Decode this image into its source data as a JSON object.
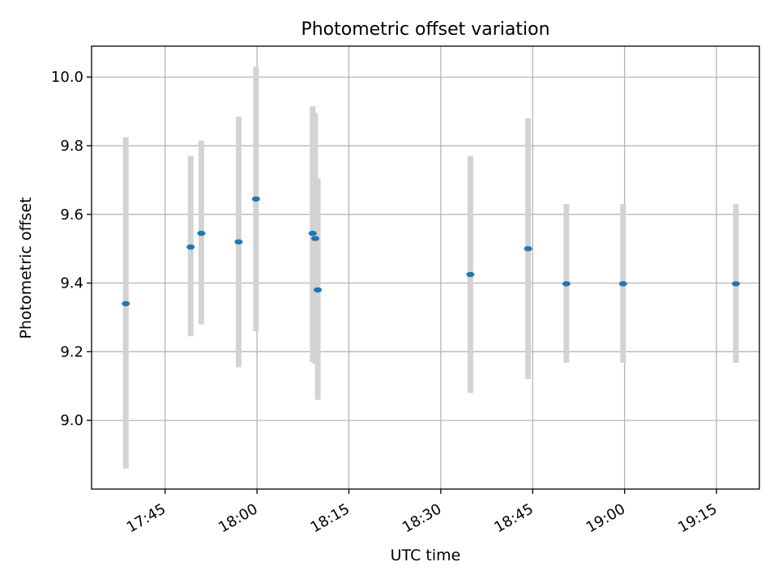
{
  "chart_data": {
    "type": "scatter",
    "title": "Photometric offset variation",
    "xlabel": "UTC time",
    "ylabel": "Photometric offset",
    "x_tick_labels": [
      "17:45",
      "18:00",
      "18:15",
      "18:30",
      "18:45",
      "19:00",
      "19:15"
    ],
    "x_ticks": [
      "17:45",
      "18:00",
      "18:15",
      "18:30",
      "18:45",
      "19:00",
      "19:15"
    ],
    "xlim": [
      "17:33",
      "19:22"
    ],
    "y_tick_labels": [
      "9.0",
      "9.2",
      "9.4",
      "9.6",
      "9.8",
      "10.0"
    ],
    "y_ticks": [
      9.0,
      9.2,
      9.4,
      9.6,
      9.8,
      10.0
    ],
    "ylim": [
      8.8,
      10.09
    ],
    "grid": true,
    "error_bar_color": "#d3d3d3",
    "point_color": "#1f77b4",
    "points": [
      {
        "x": "17:38:35",
        "y": 9.34,
        "ylow": 8.86,
        "yhigh": 9.825
      },
      {
        "x": "17:49:10",
        "y": 9.505,
        "ylow": 9.245,
        "yhigh": 9.77
      },
      {
        "x": "17:50:55",
        "y": 9.545,
        "ylow": 9.28,
        "yhigh": 9.815
      },
      {
        "x": "17:57:00",
        "y": 9.52,
        "ylow": 9.155,
        "yhigh": 9.885
      },
      {
        "x": "17:59:50",
        "y": 9.645,
        "ylow": 9.26,
        "yhigh": 10.03
      },
      {
        "x": "18:09:05",
        "y": 9.545,
        "ylow": 9.17,
        "yhigh": 9.915
      },
      {
        "x": "18:09:30",
        "y": 9.53,
        "ylow": 9.165,
        "yhigh": 9.895
      },
      {
        "x": "18:09:55",
        "y": 9.38,
        "ylow": 9.06,
        "yhigh": 9.705
      },
      {
        "x": "18:34:50",
        "y": 9.425,
        "ylow": 9.08,
        "yhigh": 9.77
      },
      {
        "x": "18:44:15",
        "y": 9.5,
        "ylow": 9.12,
        "yhigh": 9.88
      },
      {
        "x": "18:50:30",
        "y": 9.398,
        "ylow": 9.168,
        "yhigh": 9.63
      },
      {
        "x": "18:59:45",
        "y": 9.398,
        "ylow": 9.168,
        "yhigh": 9.63
      },
      {
        "x": "19:18:10",
        "y": 9.398,
        "ylow": 9.168,
        "yhigh": 9.63
      }
    ]
  }
}
